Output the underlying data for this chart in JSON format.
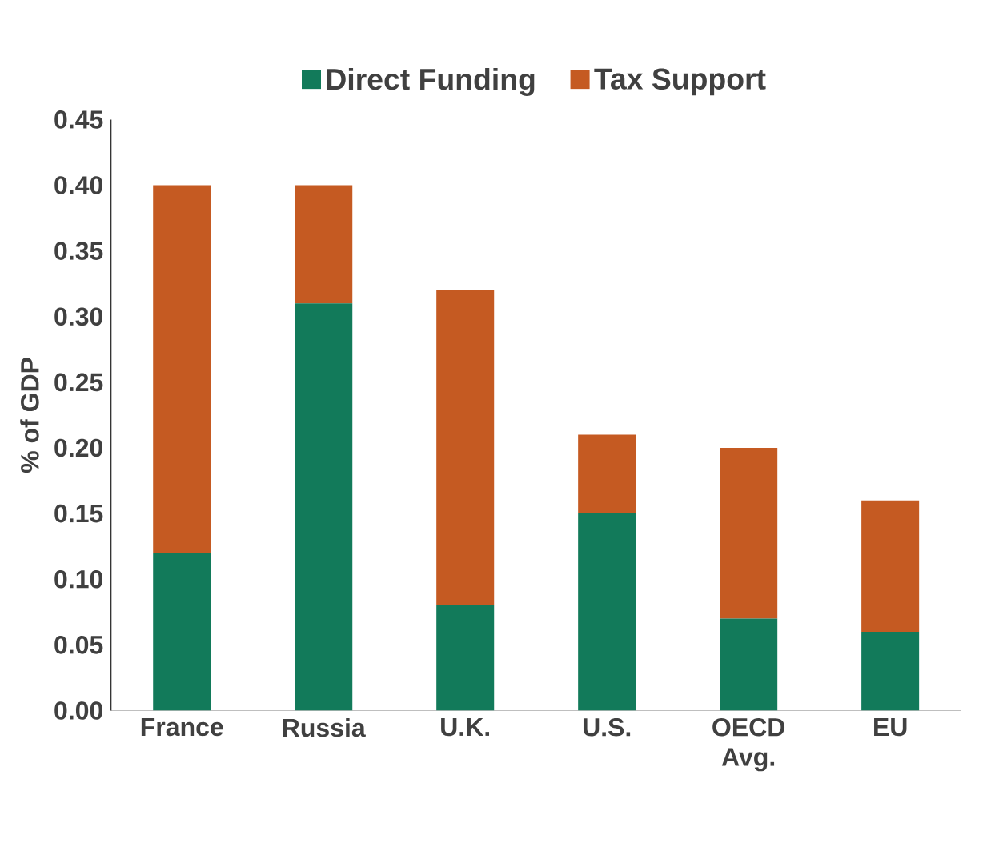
{
  "chart_data": {
    "type": "bar",
    "stacked": true,
    "ylabel": "% of GDP",
    "categories": [
      "France",
      "Russia",
      "U.K.",
      "U.S.",
      "OECD Avg.",
      "EU"
    ],
    "series": [
      {
        "name": "Direct Funding",
        "color": "#127a5a",
        "values": [
          0.12,
          0.31,
          0.08,
          0.15,
          0.07,
          0.06
        ]
      },
      {
        "name": "Tax Support",
        "color": "#c55a22",
        "values": [
          0.28,
          0.09,
          0.24,
          0.06,
          0.13,
          0.1
        ]
      }
    ],
    "ylim": [
      0,
      0.45
    ],
    "yticks": [
      {
        "value": 0,
        "label": "0.00"
      },
      {
        "value": 0.05,
        "label": "0.05"
      },
      {
        "value": 0.1,
        "label": "0.10"
      },
      {
        "value": 0.15,
        "label": "0.15"
      },
      {
        "value": 0.2,
        "label": "0.20"
      },
      {
        "value": 0.25,
        "label": "0.25"
      },
      {
        "value": 0.3,
        "label": "0.30"
      },
      {
        "value": 0.35,
        "label": "0.35"
      },
      {
        "value": 0.4,
        "label": "0.40"
      },
      {
        "value": 0.45,
        "label": "0.45"
      }
    ],
    "grid": false,
    "legend": "top"
  }
}
